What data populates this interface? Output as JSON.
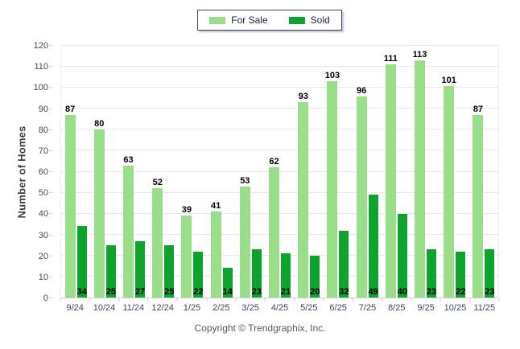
{
  "legend": {
    "items": [
      {
        "label": "For Sale",
        "color": "#9ADE8C"
      },
      {
        "label": "Sold",
        "color": "#0DA32E"
      }
    ]
  },
  "y_axis_title": "Number of Homes",
  "footer": {
    "copyright": "Copyright © Trendgraphix, Inc."
  },
  "colors": {
    "for_sale": "#9ADE8C",
    "sold": "#0DA32E",
    "gridline": "#e9e9e9",
    "axis_line": "#cfcfcf",
    "x_label_text": "#3b4a5e",
    "y_label_text": "#4a4a4a",
    "legend_border": "#3a4a66"
  },
  "chart_data": {
    "type": "bar",
    "title": "",
    "xlabel": "",
    "ylabel": "Number of Homes",
    "categories": [
      "9/24",
      "10/24",
      "11/24",
      "12/24",
      "1/25",
      "2/25",
      "3/25",
      "4/25",
      "5/25",
      "6/25",
      "7/25",
      "8/25",
      "9/25",
      "10/25",
      "11/25"
    ],
    "series": [
      {
        "name": "For Sale",
        "color": "#9ADE8C",
        "values": [
          87,
          80,
          63,
          52,
          39,
          41,
          53,
          62,
          93,
          103,
          96,
          111,
          113,
          101,
          87
        ]
      },
      {
        "name": "Sold",
        "color": "#0DA32E",
        "values": [
          34,
          25,
          27,
          25,
          22,
          14,
          23,
          21,
          20,
          32,
          49,
          40,
          23,
          22,
          23
        ]
      }
    ],
    "ylim": [
      0,
      120
    ],
    "ytick_step": 10,
    "grid": true,
    "legend_position": "top-center",
    "value_labels": {
      "For Sale": "above bar",
      "Sold": "inside bar bottom"
    }
  }
}
